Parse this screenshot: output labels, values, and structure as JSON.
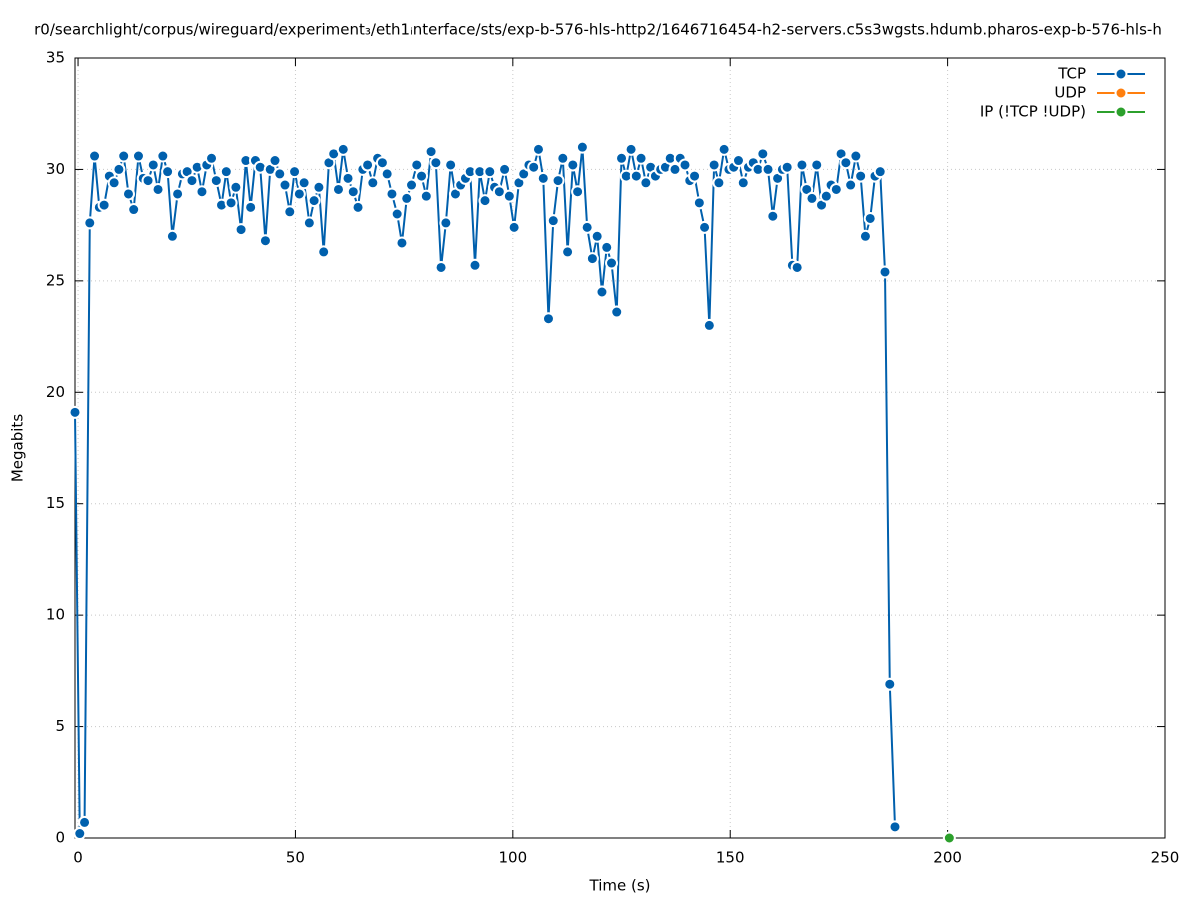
{
  "chart_data": {
    "type": "line",
    "title": "r0/searchlight/corpus/wireguard/experiment₃/eth1ᵢnterface/sts/exp-b-576-hls-http2/1646716454-h2-servers.c5s3wgsts.hdumb.pharos-exp-b-576-hls-h",
    "x_label": "Time (s)",
    "y_label": "Megabits",
    "xlim": [
      -0.7,
      250
    ],
    "xticks": [
      0,
      50,
      100,
      150,
      200,
      250
    ],
    "ylim": [
      0,
      35
    ],
    "yticks": [
      0,
      5,
      10,
      15,
      20,
      25,
      30,
      35
    ],
    "grid": true,
    "legend": "top-right",
    "series": [
      {
        "name": "TCP",
        "color": "#0060ad",
        "x": [
          -0.7,
          0.4,
          1.5,
          2.7,
          3.8,
          4.9,
          6.0,
          7.2,
          8.3,
          9.4,
          10.5,
          11.6,
          12.8,
          13.9,
          15.0,
          16.1,
          17.3,
          18.4,
          19.5,
          20.6,
          21.7,
          22.9,
          24.0,
          25.1,
          26.2,
          27.4,
          28.5,
          29.6,
          30.7,
          31.8,
          33.0,
          34.1,
          35.2,
          36.3,
          37.5,
          38.6,
          39.7,
          40.8,
          41.9,
          43.1,
          44.2,
          45.3,
          46.4,
          47.6,
          48.7,
          49.8,
          50.9,
          52.0,
          53.2,
          54.3,
          55.4,
          56.5,
          57.7,
          58.8,
          59.9,
          61.0,
          62.1,
          63.3,
          64.4,
          65.5,
          66.6,
          67.8,
          68.9,
          70.0,
          71.1,
          72.2,
          73.4,
          74.5,
          75.6,
          76.7,
          77.9,
          79.0,
          80.1,
          81.2,
          82.3,
          83.5,
          84.6,
          85.7,
          86.8,
          88.0,
          89.1,
          90.2,
          91.3,
          92.4,
          93.6,
          94.7,
          95.8,
          96.9,
          98.1,
          99.2,
          100.3,
          101.4,
          102.5,
          103.7,
          104.8,
          105.9,
          107.0,
          108.2,
          109.3,
          110.4,
          111.5,
          112.6,
          113.8,
          114.9,
          116.0,
          117.1,
          118.3,
          119.4,
          120.5,
          121.6,
          122.7,
          123.9,
          125.0,
          126.1,
          127.2,
          128.4,
          129.5,
          130.6,
          131.7,
          132.8,
          134.0,
          135.1,
          136.2,
          137.3,
          138.5,
          139.6,
          140.7,
          141.8,
          142.9,
          144.1,
          145.2,
          146.3,
          147.4,
          148.6,
          149.7,
          150.8,
          151.9,
          153.0,
          154.2,
          155.3,
          156.4,
          157.5,
          158.7,
          159.8,
          160.9,
          162.0,
          163.1,
          164.3,
          165.4,
          166.5,
          167.6,
          168.8,
          169.9,
          171.0,
          172.1,
          173.2,
          174.4,
          175.5,
          176.6,
          177.7,
          178.9,
          180.0,
          181.1,
          182.2,
          183.3,
          184.5,
          185.6,
          186.7,
          187.9
        ],
        "values": [
          19.1,
          0.2,
          0.7,
          27.6,
          30.6,
          28.3,
          28.4,
          29.7,
          29.4,
          30.0,
          30.6,
          28.9,
          28.2,
          30.6,
          29.6,
          29.5,
          30.2,
          29.1,
          30.6,
          29.9,
          27.0,
          28.9,
          29.8,
          29.9,
          29.5,
          30.1,
          29.0,
          30.2,
          30.5,
          29.5,
          28.4,
          29.9,
          28.5,
          29.2,
          27.3,
          30.4,
          28.3,
          30.4,
          30.1,
          26.8,
          30.0,
          30.4,
          29.8,
          29.3,
          28.1,
          29.9,
          28.9,
          29.4,
          27.6,
          28.6,
          29.2,
          26.3,
          30.3,
          30.7,
          29.1,
          30.9,
          29.6,
          29.0,
          28.3,
          30.0,
          30.2,
          29.4,
          30.5,
          30.3,
          29.8,
          28.9,
          28.0,
          26.7,
          28.7,
          29.3,
          30.2,
          29.7,
          28.8,
          30.8,
          30.3,
          25.6,
          27.6,
          30.2,
          28.9,
          29.3,
          29.6,
          29.9,
          25.7,
          29.9,
          28.6,
          29.9,
          29.2,
          29.0,
          30.0,
          28.8,
          27.4,
          29.4,
          29.8,
          30.2,
          30.1,
          30.9,
          29.6,
          23.3,
          27.7,
          29.5,
          30.5,
          26.3,
          30.2,
          29.0,
          31.0,
          27.4,
          26.0,
          27.0,
          24.5,
          26.5,
          25.8,
          23.6,
          30.5,
          29.7,
          30.9,
          29.7,
          30.5,
          29.4,
          30.1,
          29.7,
          30.0,
          30.1,
          30.5,
          30.0,
          30.5,
          30.2,
          29.5,
          29.7,
          28.5,
          27.4,
          23.0,
          30.2,
          29.4,
          30.9,
          30.0,
          30.1,
          30.4,
          29.4,
          30.1,
          30.3,
          30.0,
          30.7,
          30.0,
          27.9,
          29.6,
          30.0,
          30.1,
          25.7,
          25.6,
          30.2,
          29.1,
          28.7,
          30.2,
          28.4,
          28.8,
          29.3,
          29.1,
          30.7,
          30.3,
          29.3,
          30.6,
          29.7,
          27.0,
          27.8,
          29.7,
          29.9,
          25.4,
          6.9,
          0.5
        ]
      },
      {
        "name": "UDP",
        "color": "#ff7f0e",
        "x": [],
        "values": []
      },
      {
        "name": "IP (!TCP  !UDP)",
        "color": "#2ca02c",
        "x": [
          200.4
        ],
        "values": [
          0
        ]
      }
    ]
  }
}
